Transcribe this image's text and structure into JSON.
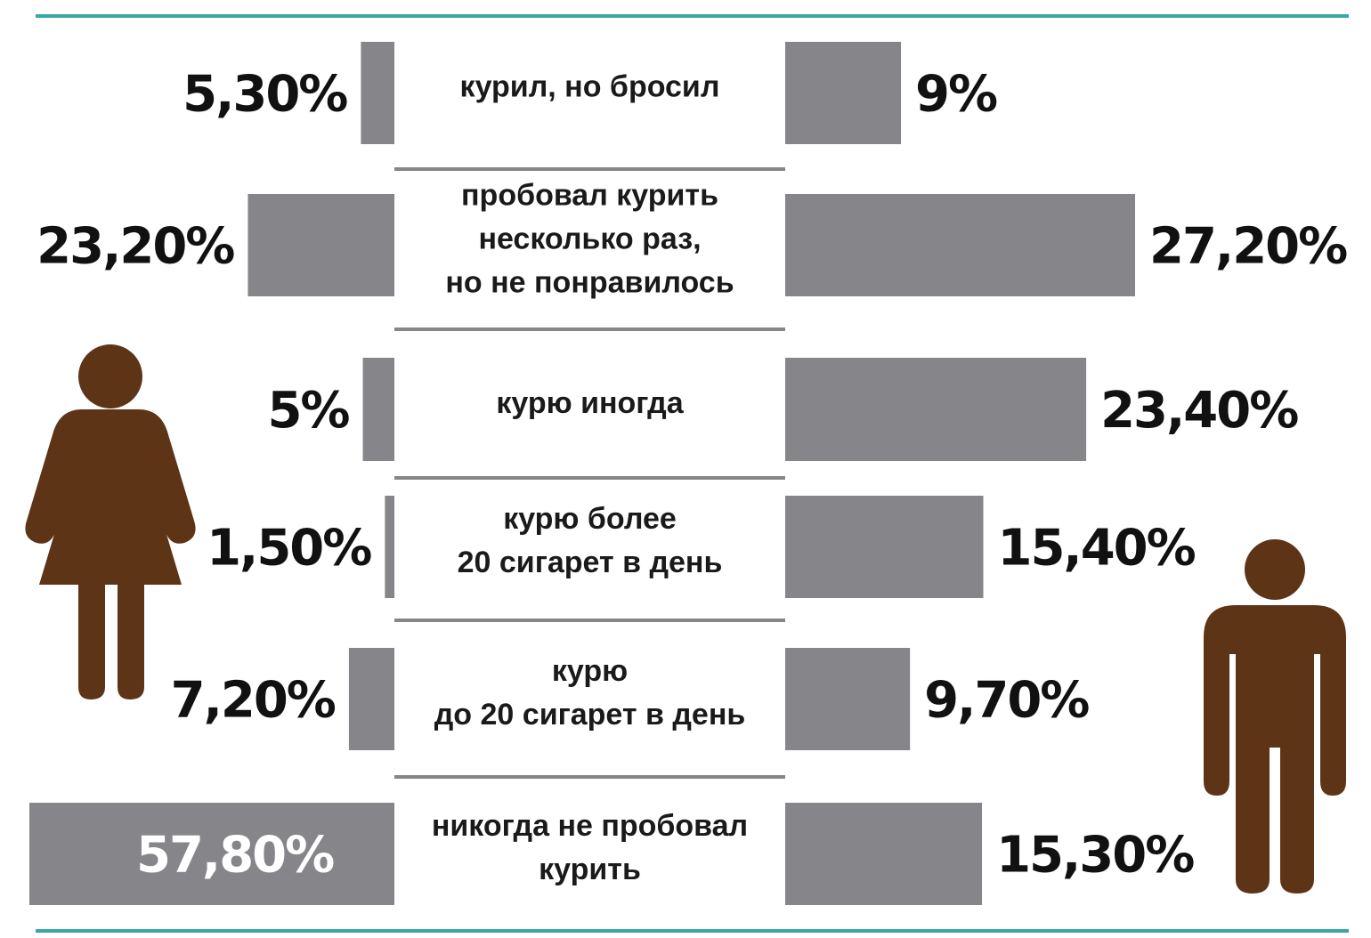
{
  "colors": {
    "bar": "#86868a",
    "rule": "#3aa7a6",
    "divider": "#86868a",
    "figure": "#5e3417",
    "text": "#111111"
  },
  "icons": {
    "left": "woman-icon",
    "right": "man-icon"
  },
  "chart_data": {
    "type": "bar",
    "orientation": "horizontal-butterfly",
    "unit": "%",
    "categories": [
      [
        "курил, но бросил"
      ],
      [
        "пробовал курить",
        "несколько раз,",
        "но не понравилось"
      ],
      [
        "курю иногда"
      ],
      [
        "курю более",
        "20 сигарет в день"
      ],
      [
        "курю",
        "до 20 сигарет в день"
      ],
      [
        "никогда не пробовал",
        "курить"
      ]
    ],
    "series": [
      {
        "side": "left",
        "icon": "woman-icon",
        "values": [
          5.3,
          23.2,
          5,
          1.5,
          7.2,
          57.8
        ],
        "labels": [
          "5,30%",
          "23,20%",
          "5%",
          "1,50%",
          "7,20%",
          "57,80%"
        ]
      },
      {
        "side": "right",
        "icon": "man-icon",
        "values": [
          9,
          27.2,
          23.4,
          15.4,
          9.7,
          15.3
        ],
        "labels": [
          "9%",
          "27,20%",
          "23,40%",
          "15,40%",
          "9,70%",
          "15,30%"
        ]
      }
    ]
  }
}
